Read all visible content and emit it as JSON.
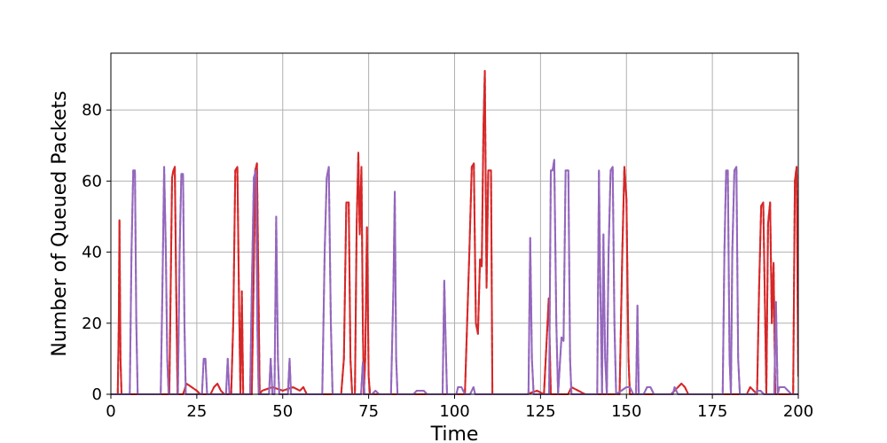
{
  "chart_data": {
    "type": "line",
    "title": "",
    "xlabel": "Time",
    "ylabel": "Number of Queued Packets",
    "xlim": [
      0,
      200
    ],
    "ylim": [
      0,
      96
    ],
    "xticks": [
      0,
      25,
      50,
      75,
      100,
      125,
      150,
      175,
      200
    ],
    "yticks": [
      0,
      20,
      40,
      60,
      80
    ],
    "grid": true,
    "legend": "none",
    "colors": {
      "red": "#d62728",
      "purple": "#9467bd"
    },
    "series": [
      {
        "color": "#d62728",
        "style": "solid+dashed",
        "points": [
          [
            0,
            0
          ],
          [
            2,
            0
          ],
          [
            2.3,
            20
          ],
          [
            2.5,
            49
          ],
          [
            2.8,
            10
          ],
          [
            3.1,
            0
          ],
          [
            17,
            0
          ],
          [
            17.4,
            30
          ],
          [
            17.8,
            61
          ],
          [
            18.2,
            63
          ],
          [
            18.6,
            64
          ],
          [
            19,
            30
          ],
          [
            19.4,
            0
          ],
          [
            21,
            0
          ],
          [
            22,
            3
          ],
          [
            23.5,
            2
          ],
          [
            25,
            1
          ],
          [
            26,
            0
          ],
          [
            29,
            0
          ],
          [
            30,
            2
          ],
          [
            31,
            3
          ],
          [
            32,
            1
          ],
          [
            33,
            0
          ],
          [
            35,
            0
          ],
          [
            35.6,
            20
          ],
          [
            36.2,
            63
          ],
          [
            36.8,
            64
          ],
          [
            37.3,
            25
          ],
          [
            37.7,
            0
          ],
          [
            38.1,
            29
          ],
          [
            38.5,
            0
          ],
          [
            41,
            0
          ],
          [
            41.5,
            30
          ],
          [
            42,
            63
          ],
          [
            42.5,
            65
          ],
          [
            43,
            25
          ],
          [
            43.3,
            0
          ],
          [
            44,
            1
          ],
          [
            47,
            2
          ],
          [
            50,
            1
          ],
          [
            53,
            2
          ],
          [
            55,
            1
          ],
          [
            56,
            2
          ],
          [
            57,
            0
          ],
          [
            67,
            0
          ],
          [
            67.8,
            10
          ],
          [
            68.5,
            54
          ],
          [
            69.2,
            54
          ],
          [
            69.7,
            10
          ],
          [
            70.2,
            0
          ],
          [
            71,
            0
          ],
          [
            71.5,
            47
          ],
          [
            72,
            68
          ],
          [
            72.4,
            45
          ],
          [
            72.9,
            64
          ],
          [
            73.3,
            20
          ],
          [
            73.6,
            0
          ],
          [
            74,
            10
          ],
          [
            74.5,
            47
          ],
          [
            75,
            5
          ],
          [
            75.4,
            0
          ],
          [
            102,
            0
          ],
          [
            103,
            0
          ],
          [
            104.3,
            40
          ],
          [
            105,
            64
          ],
          [
            105.6,
            65
          ],
          [
            106.2,
            20
          ],
          [
            106.8,
            17
          ],
          [
            107.4,
            38
          ],
          [
            107.9,
            36
          ],
          [
            108.4,
            75
          ],
          [
            108.8,
            91
          ],
          [
            109.3,
            30
          ],
          [
            109.8,
            63
          ],
          [
            110.6,
            63
          ],
          [
            111,
            0
          ],
          [
            121,
            0
          ],
          [
            124,
            1
          ],
          [
            126,
            0
          ],
          [
            127.4,
            27
          ],
          [
            128,
            0
          ],
          [
            133,
            0
          ],
          [
            134,
            2
          ],
          [
            136,
            1
          ],
          [
            138,
            0
          ],
          [
            148,
            0
          ],
          [
            148.8,
            40
          ],
          [
            149.4,
            64
          ],
          [
            150,
            55
          ],
          [
            150.6,
            10
          ],
          [
            151,
            0
          ],
          [
            163,
            0
          ],
          [
            164,
            1
          ],
          [
            166,
            3
          ],
          [
            167,
            2
          ],
          [
            168,
            0
          ],
          [
            185,
            0
          ],
          [
            186,
            2
          ],
          [
            187,
            1
          ],
          [
            188,
            0
          ],
          [
            188.6,
            30
          ],
          [
            189.2,
            53
          ],
          [
            189.8,
            54
          ],
          [
            190.3,
            25
          ],
          [
            190.7,
            0
          ],
          [
            191.2,
            48
          ],
          [
            191.8,
            54
          ],
          [
            192.3,
            20
          ],
          [
            192.8,
            37
          ],
          [
            193.3,
            0
          ],
          [
            196,
            0
          ],
          [
            198.5,
            0
          ],
          [
            199,
            60
          ],
          [
            199.5,
            64
          ],
          [
            200,
            5
          ]
        ]
      },
      {
        "color": "#9467bd",
        "style": "solid+dashed",
        "points": [
          [
            0,
            0
          ],
          [
            5.5,
            0
          ],
          [
            6,
            40
          ],
          [
            6.5,
            63
          ],
          [
            7,
            63
          ],
          [
            7.4,
            20
          ],
          [
            7.8,
            0
          ],
          [
            14.5,
            0
          ],
          [
            15,
            30
          ],
          [
            15.5,
            64
          ],
          [
            16,
            40
          ],
          [
            16.4,
            10
          ],
          [
            16.8,
            0
          ],
          [
            19.5,
            0
          ],
          [
            20,
            40
          ],
          [
            20.5,
            62
          ],
          [
            21,
            62
          ],
          [
            21.4,
            20
          ],
          [
            21.8,
            0
          ],
          [
            26.5,
            0
          ],
          [
            27,
            10
          ],
          [
            27.5,
            10
          ],
          [
            28,
            0
          ],
          [
            33.5,
            0
          ],
          [
            34,
            10
          ],
          [
            34.5,
            0
          ],
          [
            40.5,
            0
          ],
          [
            41,
            30
          ],
          [
            41.6,
            61
          ],
          [
            42.2,
            63
          ],
          [
            42.6,
            20
          ],
          [
            43,
            0
          ],
          [
            46,
            0
          ],
          [
            46.5,
            10
          ],
          [
            47,
            0
          ],
          [
            47.6,
            0
          ],
          [
            48.1,
            50
          ],
          [
            48.6,
            10
          ],
          [
            49,
            0
          ],
          [
            51.5,
            0
          ],
          [
            52,
            10
          ],
          [
            52.4,
            0
          ],
          [
            61.5,
            0
          ],
          [
            62.2,
            40
          ],
          [
            62.8,
            61
          ],
          [
            63.4,
            64
          ],
          [
            64,
            20
          ],
          [
            64.5,
            0
          ],
          [
            72.8,
            0
          ],
          [
            73.3,
            9
          ],
          [
            73.8,
            0
          ],
          [
            76,
            0
          ],
          [
            77,
            1
          ],
          [
            78,
            0
          ],
          [
            81.5,
            0
          ],
          [
            82.2,
            30
          ],
          [
            82.6,
            57
          ],
          [
            83,
            10
          ],
          [
            83.4,
            0
          ],
          [
            88,
            0
          ],
          [
            89,
            1
          ],
          [
            91,
            1
          ],
          [
            92,
            0
          ],
          [
            96.5,
            0
          ],
          [
            97,
            32
          ],
          [
            97.4,
            15
          ],
          [
            97.8,
            0
          ],
          [
            100.5,
            0
          ],
          [
            101,
            2
          ],
          [
            102,
            2
          ],
          [
            103,
            0
          ],
          [
            104.5,
            0
          ],
          [
            105.5,
            2
          ],
          [
            106,
            0
          ],
          [
            121.5,
            0
          ],
          [
            122,
            44
          ],
          [
            122.5,
            10
          ],
          [
            123,
            0
          ],
          [
            127.5,
            0
          ],
          [
            128,
            63
          ],
          [
            128.5,
            63
          ],
          [
            129,
            66
          ],
          [
            129.6,
            20
          ],
          [
            130.1,
            0
          ],
          [
            130.6,
            8
          ],
          [
            131.1,
            16
          ],
          [
            131.7,
            15
          ],
          [
            132.3,
            63
          ],
          [
            133.1,
            63
          ],
          [
            133.6,
            10
          ],
          [
            134,
            0
          ],
          [
            141.5,
            0
          ],
          [
            142,
            63
          ],
          [
            142.4,
            30
          ],
          [
            142.9,
            0
          ],
          [
            143.3,
            45
          ],
          [
            143.8,
            10
          ],
          [
            144.3,
            0
          ],
          [
            144.8,
            40
          ],
          [
            145.4,
            63
          ],
          [
            146,
            64
          ],
          [
            146.5,
            20
          ],
          [
            147,
            0
          ],
          [
            148.5,
            1
          ],
          [
            150,
            2
          ],
          [
            151,
            2
          ],
          [
            152,
            0
          ],
          [
            152.8,
            0
          ],
          [
            153.2,
            25
          ],
          [
            153.6,
            0
          ],
          [
            155,
            0
          ],
          [
            156,
            2
          ],
          [
            157,
            2
          ],
          [
            158,
            0
          ],
          [
            163.5,
            0
          ],
          [
            164,
            2
          ],
          [
            165,
            0
          ],
          [
            178,
            0
          ],
          [
            178.5,
            40
          ],
          [
            179,
            63
          ],
          [
            179.5,
            63
          ],
          [
            180,
            10
          ],
          [
            180.4,
            0
          ],
          [
            180.8,
            40
          ],
          [
            181.4,
            63
          ],
          [
            182,
            64
          ],
          [
            182.5,
            10
          ],
          [
            183,
            0
          ],
          [
            187.5,
            0
          ],
          [
            188,
            1
          ],
          [
            189,
            1
          ],
          [
            190,
            0
          ],
          [
            193,
            0
          ],
          [
            193.5,
            26
          ],
          [
            194,
            0
          ],
          [
            194.5,
            2
          ],
          [
            196,
            2
          ],
          [
            197,
            1
          ],
          [
            198,
            0
          ],
          [
            200,
            0
          ]
        ]
      }
    ]
  }
}
